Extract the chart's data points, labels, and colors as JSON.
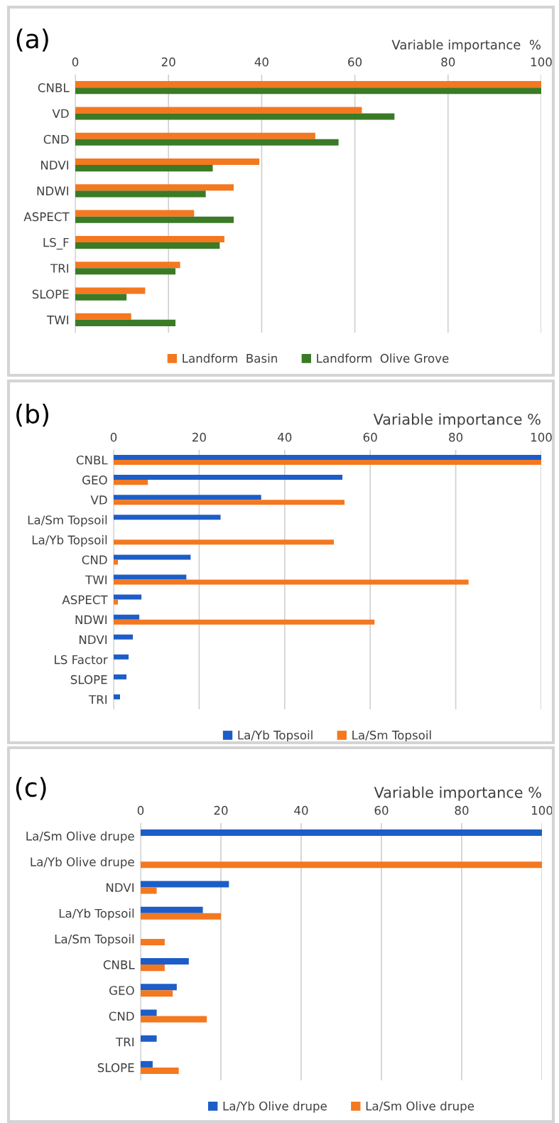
{
  "chart_data": [
    {
      "type": "bar",
      "orientation": "horizontal",
      "title": "(a)",
      "xlabel": "Variable importance  %",
      "xlim": [
        0,
        100
      ],
      "xticks": [
        0,
        20,
        40,
        60,
        80,
        100
      ],
      "grid": "x",
      "legend": "bottom",
      "categories": [
        "CNBL",
        "VD",
        "CND",
        "NDVI",
        "NDWI",
        "ASPECT",
        "LS_F",
        "TRI",
        "SLOPE",
        "TWI"
      ],
      "series": [
        {
          "name": "Landform  Basin",
          "color": "#f4781f",
          "values": [
            100,
            61.5,
            51.5,
            39.5,
            34,
            25.5,
            32,
            22.5,
            15,
            12
          ]
        },
        {
          "name": "Landform  Olive Grove",
          "color": "#3b7a26",
          "values": [
            100,
            68.5,
            56.5,
            29.5,
            28,
            34,
            31,
            21.5,
            11,
            21.5
          ]
        }
      ]
    },
    {
      "type": "bar",
      "orientation": "horizontal",
      "title": "(b)",
      "xlabel": "Variable importance %",
      "xlim": [
        0,
        100
      ],
      "xticks": [
        0,
        20,
        40,
        60,
        80,
        100
      ],
      "grid": "x",
      "legend": "bottom",
      "categories": [
        "CNBL",
        "GEO",
        "VD",
        "La/Sm Topsoil",
        "La/Yb Topsoil",
        "CND",
        "TWI",
        "ASPECT",
        "NDWI",
        "NDVI",
        "LS Factor",
        "SLOPE",
        "TRI"
      ],
      "series": [
        {
          "name": "La/Yb Topsoil",
          "color": "#1d5dc7",
          "values": [
            100,
            53.5,
            34.5,
            25,
            null,
            18,
            17,
            6.5,
            6,
            4.5,
            3.5,
            3,
            1.5
          ]
        },
        {
          "name": "La/Sm Topsoil",
          "color": "#f4781f",
          "values": [
            100,
            8,
            54,
            null,
            51.5,
            1,
            83,
            1,
            61,
            null,
            null,
            null,
            null
          ]
        }
      ]
    },
    {
      "type": "bar",
      "orientation": "horizontal",
      "title": "(c)",
      "xlabel": "Variable importance %",
      "xlim": [
        0,
        100
      ],
      "xticks": [
        0,
        20,
        40,
        60,
        80,
        100
      ],
      "grid": "x",
      "legend": "bottom",
      "categories": [
        "La/Sm Olive drupe",
        "La/Yb Olive drupe",
        "NDVI",
        "La/Yb Topsoil",
        "La/Sm Topsoil",
        "CNBL",
        "GEO",
        "CND",
        "TRI",
        "SLOPE"
      ],
      "series": [
        {
          "name": "La/Yb Olive drupe",
          "color": "#1d5dc7",
          "values": [
            100,
            null,
            22,
            15.5,
            null,
            12,
            9,
            4,
            4,
            3
          ]
        },
        {
          "name": "La/Sm Olive drupe",
          "color": "#f4781f",
          "values": [
            null,
            100,
            4,
            20,
            6,
            6,
            8,
            16.5,
            null,
            9.5
          ]
        }
      ]
    }
  ]
}
